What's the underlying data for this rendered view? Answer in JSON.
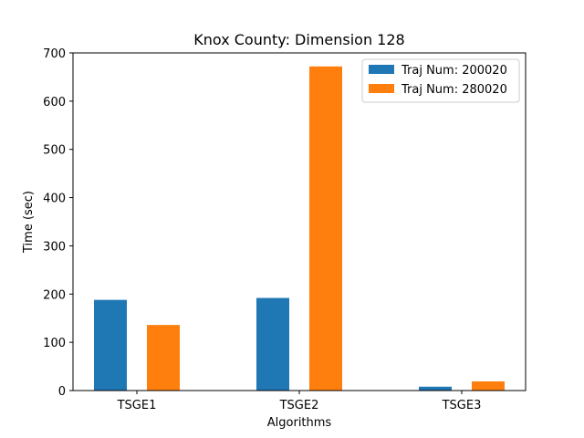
{
  "chart_data": {
    "type": "bar",
    "title": "Knox County: Dimension 128",
    "xlabel": "Algorithms",
    "ylabel": "Time (sec)",
    "categories": [
      "TSGE1",
      "TSGE2",
      "TSGE3"
    ],
    "series": [
      {
        "name": "Traj Num: 200020",
        "color": "#1f77b4",
        "values": [
          188,
          192,
          8
        ]
      },
      {
        "name": "Traj Num: 280020",
        "color": "#ff7f0e",
        "values": [
          136,
          672,
          19
        ]
      }
    ],
    "ylim": [
      0,
      700
    ],
    "yticks": [
      0,
      100,
      200,
      300,
      400,
      500,
      600,
      700
    ],
    "legend_position": "upper-right",
    "grid": false
  }
}
